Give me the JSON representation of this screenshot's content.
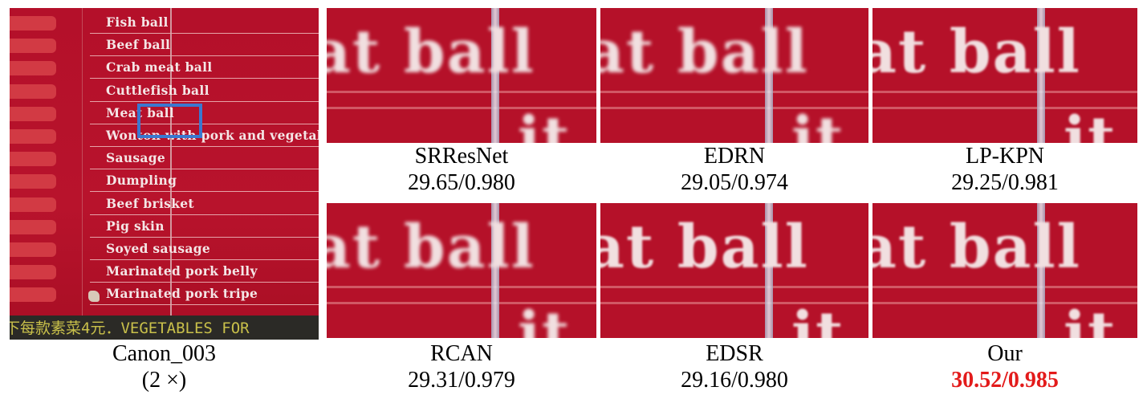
{
  "overview": {
    "menu_items": [
      "Fish ball",
      "Beef ball",
      "Crab meat ball",
      "Cuttlefish ball",
      "Meat ball",
      "Wonton with pork and vegetab",
      "Sausage",
      "Dumpling",
      "Beef brisket",
      "Pig skin",
      "Soyed sausage",
      "Marinated pork belly",
      "Marinated pork tripe"
    ],
    "footer_text": "下每款素菜4元．VEGETABLES FOR",
    "box_color": "#3a78d0",
    "label": "Canon_003",
    "scale": "(2 ×)"
  },
  "crop_text": {
    "line1": "at ball",
    "line2": "it"
  },
  "methods": [
    {
      "name": "SRResNet",
      "score": "29.65/0.980"
    },
    {
      "name": "EDRN",
      "score": "29.05/0.974"
    },
    {
      "name": "LP-KPN",
      "score": "29.25/0.981"
    },
    {
      "name": "RCAN",
      "score": "29.31/0.979"
    },
    {
      "name": "EDSR",
      "score": "29.16/0.980"
    },
    {
      "name": "Our",
      "score": "30.52/0.985"
    }
  ],
  "colors": {
    "best_score": "#e31b1b",
    "background": "#b51129"
  }
}
